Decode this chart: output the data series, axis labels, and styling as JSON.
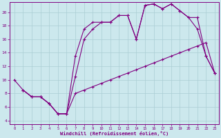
{
  "xlabel": "Windchill (Refroidissement éolien,°C)",
  "background_color": "#cce8ed",
  "line_color": "#800080",
  "grid_color": "#aacdd4",
  "xlim": [
    -0.5,
    23.5
  ],
  "ylim": [
    3.5,
    21.5
  ],
  "xticks": [
    0,
    1,
    2,
    3,
    4,
    5,
    6,
    7,
    8,
    9,
    10,
    11,
    12,
    13,
    14,
    15,
    16,
    17,
    18,
    19,
    20,
    21,
    22,
    23
  ],
  "yticks": [
    4,
    6,
    8,
    10,
    12,
    14,
    16,
    18,
    20
  ],
  "line1": {
    "x": [
      0,
      1,
      2,
      3,
      4,
      5,
      6,
      7,
      8,
      9,
      10,
      11,
      12,
      13,
      14,
      15,
      16,
      17,
      18,
      19,
      20,
      21,
      22,
      23
    ],
    "y": [
      10,
      8.5,
      7.5,
      7.5,
      6.5,
      5.0,
      5.0,
      8.0,
      8.5,
      9.0,
      9.5,
      10.0,
      10.5,
      11.0,
      11.5,
      12.0,
      12.5,
      13.0,
      13.5,
      14.0,
      14.5,
      15.0,
      15.5,
      11.0
    ]
  },
  "line2": {
    "x": [
      1,
      2,
      3,
      4,
      5,
      6,
      7,
      8,
      9,
      10,
      11,
      12,
      13,
      14,
      15,
      16,
      17,
      18,
      19,
      20,
      21,
      22,
      23
    ],
    "y": [
      8.5,
      7.5,
      7.5,
      6.5,
      5.0,
      5.0,
      13.5,
      17.5,
      18.5,
      18.5,
      18.5,
      19.5,
      19.5,
      16.0,
      21.0,
      21.2,
      20.5,
      21.2,
      20.2,
      19.2,
      19.2,
      13.5,
      11.0
    ]
  },
  "line3": {
    "x": [
      1,
      2,
      3,
      4,
      5,
      6,
      7,
      8,
      9,
      10,
      11,
      12,
      13,
      14,
      15,
      16,
      17,
      18,
      19,
      20,
      21,
      22,
      23
    ],
    "y": [
      8.5,
      7.5,
      7.5,
      6.5,
      5.0,
      5.0,
      10.5,
      16.0,
      17.5,
      18.5,
      18.5,
      19.5,
      19.5,
      16.0,
      21.0,
      21.2,
      20.5,
      21.2,
      20.2,
      19.2,
      17.5,
      13.5,
      11.0
    ]
  }
}
